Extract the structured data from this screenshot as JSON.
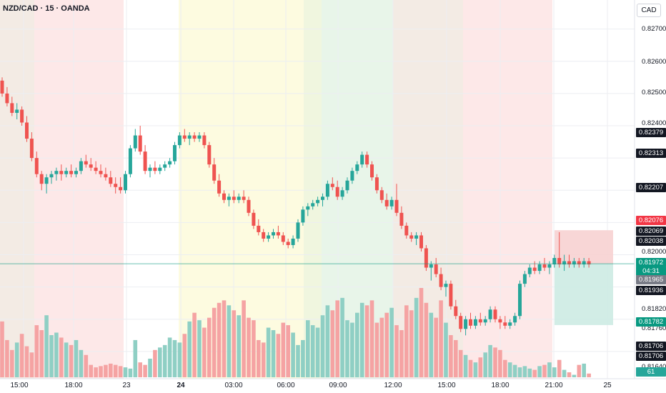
{
  "header": {
    "symbol_title": "NZD/CAD · 15 · OANDA"
  },
  "price_axis": {
    "currency_label": "CAD",
    "ticks": [
      "0.82700",
      "0.82600",
      "0.82500",
      "0.82400",
      "0.82000",
      "0.81820",
      "0.81760",
      "0.81640"
    ],
    "badges": [
      {
        "label": "0.82379",
        "color": "#131722"
      },
      {
        "label": "0.82313",
        "color": "#131722"
      },
      {
        "label": "0.82207",
        "color": "#131722"
      },
      {
        "label": "0.82076",
        "color": "#f23645"
      },
      {
        "label": "0.82069",
        "color": "#131722"
      },
      {
        "label": "0.82038",
        "color": "#131722"
      },
      {
        "label": "0.81972",
        "color": "#089981"
      },
      {
        "label": "04:31",
        "color": "#089981"
      },
      {
        "label": "0.81965",
        "color": "#787b86"
      },
      {
        "label": "0.81936",
        "color": "#131722"
      },
      {
        "label": "0.81782",
        "color": "#089981"
      },
      {
        "label": "0.81706",
        "color": "#131722"
      },
      {
        "label": "0.81706",
        "color": "#131722"
      },
      {
        "label": "61",
        "color": "#26a69a"
      }
    ]
  },
  "time_axis": {
    "ticks": [
      {
        "label": "15:00",
        "bold": false
      },
      {
        "label": "18:00",
        "bold": false
      },
      {
        "label": "23",
        "bold": false
      },
      {
        "label": "24",
        "bold": true
      },
      {
        "label": "03:00",
        "bold": false
      },
      {
        "label": "06:00",
        "bold": false
      },
      {
        "label": "09:00",
        "bold": false
      },
      {
        "label": "12:00",
        "bold": false
      },
      {
        "label": "15:00",
        "bold": false
      },
      {
        "label": "18:00",
        "bold": false
      },
      {
        "label": "21:00",
        "bold": false
      },
      {
        "label": "25",
        "bold": false
      }
    ]
  },
  "colors": {
    "up": "#26a69a",
    "down": "#ef5350",
    "up_volume": "#8fcfc4",
    "down_volume": "#f5a3a3",
    "session_red": "#fde8e8",
    "session_yellow": "#fdfbe0",
    "session_green": "#e8f5e9",
    "session_brown": "#f3ebe4",
    "session_olive": "#f0f6df",
    "current_price_line": "#089981",
    "stop_zone": "#f7d2d2",
    "target_zone": "#cdebe3"
  },
  "chart_data": {
    "type": "candlestick",
    "symbol": "NZD/CAD",
    "interval": "15",
    "source": "OANDA",
    "currency": "CAD",
    "ylim": [
      0.8162,
      0.8279
    ],
    "current_price": 0.81972,
    "bar_countdown": "04:31",
    "position_tool": {
      "entry": 0.81972,
      "stop": 0.82076,
      "target": 0.81782
    },
    "ohlc": [
      [
        0.8254,
        0.8255,
        0.8249,
        0.825
      ],
      [
        0.825,
        0.8252,
        0.8246,
        0.8247
      ],
      [
        0.8247,
        0.8249,
        0.8243,
        0.8244
      ],
      [
        0.8244,
        0.8247,
        0.8242,
        0.8245
      ],
      [
        0.8245,
        0.8246,
        0.824,
        0.8241
      ],
      [
        0.8241,
        0.8243,
        0.8235,
        0.8236
      ],
      [
        0.8236,
        0.8238,
        0.8229,
        0.823
      ],
      [
        0.823,
        0.8232,
        0.8224,
        0.8225
      ],
      [
        0.8225,
        0.8226,
        0.822,
        0.8222
      ],
      [
        0.8222,
        0.8225,
        0.8219,
        0.8224
      ],
      [
        0.8224,
        0.8226,
        0.8222,
        0.8225
      ],
      [
        0.8225,
        0.8227,
        0.8223,
        0.8226
      ],
      [
        0.8226,
        0.8228,
        0.8223,
        0.8225
      ],
      [
        0.8225,
        0.8227,
        0.8224,
        0.8226
      ],
      [
        0.8226,
        0.8228,
        0.8224,
        0.8225
      ],
      [
        0.8225,
        0.8227,
        0.8224,
        0.8226
      ],
      [
        0.8226,
        0.823,
        0.8225,
        0.8229
      ],
      [
        0.8229,
        0.8231,
        0.8227,
        0.8228
      ],
      [
        0.8228,
        0.823,
        0.8226,
        0.8227
      ],
      [
        0.8227,
        0.8229,
        0.8225,
        0.8226
      ],
      [
        0.8226,
        0.8228,
        0.8224,
        0.8225
      ],
      [
        0.8225,
        0.8227,
        0.8223,
        0.8224
      ],
      [
        0.8224,
        0.8226,
        0.8221,
        0.8222
      ],
      [
        0.8222,
        0.8224,
        0.8219,
        0.8221
      ],
      [
        0.8221,
        0.8224,
        0.8219,
        0.822
      ],
      [
        0.822,
        0.8226,
        0.8219,
        0.8225
      ],
      [
        0.8225,
        0.8234,
        0.8224,
        0.8233
      ],
      [
        0.8233,
        0.8239,
        0.8232,
        0.8237
      ],
      [
        0.8237,
        0.824,
        0.8231,
        0.8232
      ],
      [
        0.8232,
        0.8234,
        0.8225,
        0.8226
      ],
      [
        0.8226,
        0.8228,
        0.8224,
        0.8227
      ],
      [
        0.8227,
        0.8229,
        0.8225,
        0.8226
      ],
      [
        0.8226,
        0.8228,
        0.8225,
        0.8227
      ],
      [
        0.8227,
        0.8229,
        0.8226,
        0.8228
      ],
      [
        0.8228,
        0.823,
        0.8227,
        0.8229
      ],
      [
        0.8229,
        0.8235,
        0.8228,
        0.8234
      ],
      [
        0.8234,
        0.8238,
        0.8233,
        0.8237
      ],
      [
        0.8237,
        0.8239,
        0.8235,
        0.8236
      ],
      [
        0.8236,
        0.8238,
        0.8234,
        0.8237
      ],
      [
        0.8237,
        0.8238,
        0.8235,
        0.8236
      ],
      [
        0.8236,
        0.8238,
        0.8235,
        0.8237
      ],
      [
        0.8237,
        0.8238,
        0.8233,
        0.8234
      ],
      [
        0.8234,
        0.8235,
        0.8227,
        0.8228
      ],
      [
        0.8228,
        0.823,
        0.8222,
        0.8223
      ],
      [
        0.8223,
        0.8225,
        0.8218,
        0.8219
      ],
      [
        0.8219,
        0.822,
        0.8216,
        0.8217
      ],
      [
        0.8217,
        0.8219,
        0.8215,
        0.8218
      ],
      [
        0.8218,
        0.822,
        0.8216,
        0.8217
      ],
      [
        0.8217,
        0.8219,
        0.8216,
        0.8218
      ],
      [
        0.8218,
        0.822,
        0.8216,
        0.8217
      ],
      [
        0.8217,
        0.8218,
        0.8212,
        0.8213
      ],
      [
        0.8213,
        0.8214,
        0.8208,
        0.8209
      ],
      [
        0.8209,
        0.8211,
        0.8206,
        0.8207
      ],
      [
        0.8207,
        0.8208,
        0.8204,
        0.8205
      ],
      [
        0.8205,
        0.8207,
        0.8204,
        0.8206
      ],
      [
        0.8206,
        0.8208,
        0.8205,
        0.8207
      ],
      [
        0.8207,
        0.8209,
        0.8205,
        0.8206
      ],
      [
        0.8206,
        0.8207,
        0.8203,
        0.8204
      ],
      [
        0.8204,
        0.8205,
        0.8202,
        0.8203
      ],
      [
        0.8203,
        0.8206,
        0.8202,
        0.8205
      ],
      [
        0.8205,
        0.8211,
        0.8204,
        0.821
      ],
      [
        0.821,
        0.8215,
        0.8209,
        0.8214
      ],
      [
        0.8214,
        0.8216,
        0.8212,
        0.8215
      ],
      [
        0.8215,
        0.8217,
        0.8214,
        0.8216
      ],
      [
        0.8216,
        0.8218,
        0.8215,
        0.8217
      ],
      [
        0.8217,
        0.8219,
        0.8215,
        0.8218
      ],
      [
        0.8218,
        0.8223,
        0.8217,
        0.8222
      ],
      [
        0.8222,
        0.8224,
        0.822,
        0.8221
      ],
      [
        0.8221,
        0.8223,
        0.8217,
        0.8218
      ],
      [
        0.8218,
        0.8221,
        0.8217,
        0.822
      ],
      [
        0.822,
        0.8224,
        0.8219,
        0.8223
      ],
      [
        0.8223,
        0.8227,
        0.8222,
        0.8226
      ],
      [
        0.8226,
        0.8229,
        0.8225,
        0.8228
      ],
      [
        0.8228,
        0.8232,
        0.8227,
        0.8231
      ],
      [
        0.8231,
        0.8232,
        0.8227,
        0.8228
      ],
      [
        0.8228,
        0.8229,
        0.8223,
        0.8224
      ],
      [
        0.8224,
        0.8225,
        0.8219,
        0.822
      ],
      [
        0.822,
        0.8221,
        0.8216,
        0.8217
      ],
      [
        0.8217,
        0.8219,
        0.8214,
        0.8215
      ],
      [
        0.8215,
        0.8218,
        0.8214,
        0.8217
      ],
      [
        0.8217,
        0.8222,
        0.8212,
        0.8213
      ],
      [
        0.8213,
        0.8215,
        0.8208,
        0.8209
      ],
      [
        0.8209,
        0.821,
        0.8205,
        0.8206
      ],
      [
        0.8206,
        0.8207,
        0.8204,
        0.8205
      ],
      [
        0.8205,
        0.8207,
        0.8203,
        0.8206
      ],
      [
        0.8206,
        0.8207,
        0.8201,
        0.8202
      ],
      [
        0.8202,
        0.8203,
        0.8195,
        0.8196
      ],
      [
        0.8196,
        0.8198,
        0.8192,
        0.8197
      ],
      [
        0.8197,
        0.8199,
        0.8193,
        0.8194
      ],
      [
        0.8194,
        0.8196,
        0.8189,
        0.819
      ],
      [
        0.819,
        0.8192,
        0.8187,
        0.8191
      ],
      [
        0.8191,
        0.8192,
        0.8183,
        0.8184
      ],
      [
        0.8184,
        0.8186,
        0.818,
        0.8181
      ],
      [
        0.8181,
        0.8182,
        0.8176,
        0.8177
      ],
      [
        0.8177,
        0.8181,
        0.8175,
        0.818
      ],
      [
        0.818,
        0.8182,
        0.8177,
        0.8178
      ],
      [
        0.8178,
        0.8181,
        0.8177,
        0.818
      ],
      [
        0.818,
        0.8182,
        0.8178,
        0.8179
      ],
      [
        0.8179,
        0.8181,
        0.8178,
        0.818
      ],
      [
        0.818,
        0.8184,
        0.8179,
        0.8183
      ],
      [
        0.8183,
        0.8184,
        0.8179,
        0.818
      ],
      [
        0.818,
        0.8181,
        0.8177,
        0.8179
      ],
      [
        0.8179,
        0.8181,
        0.8177,
        0.8178
      ],
      [
        0.8178,
        0.818,
        0.8177,
        0.8179
      ],
      [
        0.8179,
        0.8182,
        0.8178,
        0.8181
      ],
      [
        0.8181,
        0.8192,
        0.818,
        0.8191
      ],
      [
        0.8191,
        0.8195,
        0.819,
        0.8194
      ],
      [
        0.8194,
        0.8197,
        0.8193,
        0.8196
      ],
      [
        0.8196,
        0.8198,
        0.8194,
        0.8195
      ],
      [
        0.8195,
        0.8198,
        0.8194,
        0.8197
      ],
      [
        0.8197,
        0.8199,
        0.8195,
        0.8196
      ],
      [
        0.8196,
        0.8198,
        0.8194,
        0.8197
      ],
      [
        0.8197,
        0.82,
        0.8196,
        0.8199
      ],
      [
        0.8199,
        0.8207,
        0.8196,
        0.8197
      ],
      [
        0.8197,
        0.82,
        0.8195,
        0.8198
      ],
      [
        0.8198,
        0.82,
        0.8196,
        0.8197
      ],
      [
        0.8197,
        0.8199,
        0.8196,
        0.8198
      ],
      [
        0.8198,
        0.8199,
        0.8196,
        0.8197
      ],
      [
        0.8197,
        0.8199,
        0.8196,
        0.8198
      ],
      [
        0.8198,
        0.8199,
        0.8196,
        0.8197
      ]
    ],
    "volume": [
      45,
      30,
      22,
      28,
      35,
      25,
      20,
      42,
      38,
      50,
      34,
      36,
      32,
      28,
      26,
      30,
      22,
      18,
      10,
      8,
      9,
      10,
      11,
      10,
      9,
      8,
      7,
      30,
      12,
      10,
      15,
      22,
      24,
      26,
      32,
      30,
      28,
      35,
      45,
      52,
      46,
      40,
      48,
      56,
      60,
      62,
      58,
      54,
      50,
      62,
      48,
      46,
      30,
      28,
      40,
      38,
      35,
      44,
      42,
      36,
      26,
      30,
      46,
      42,
      40,
      50,
      58,
      54,
      62,
      64,
      46,
      44,
      52,
      60,
      58,
      62,
      44,
      48,
      52,
      56,
      42,
      38,
      58,
      54,
      64,
      72,
      60,
      52,
      48,
      62,
      44,
      34,
      30,
      22,
      18,
      14,
      12,
      16,
      20,
      26,
      24,
      22,
      14,
      12,
      10,
      8,
      9,
      7,
      6,
      9,
      10,
      12,
      8,
      14,
      6,
      4,
      2,
      10,
      11,
      3
    ]
  }
}
